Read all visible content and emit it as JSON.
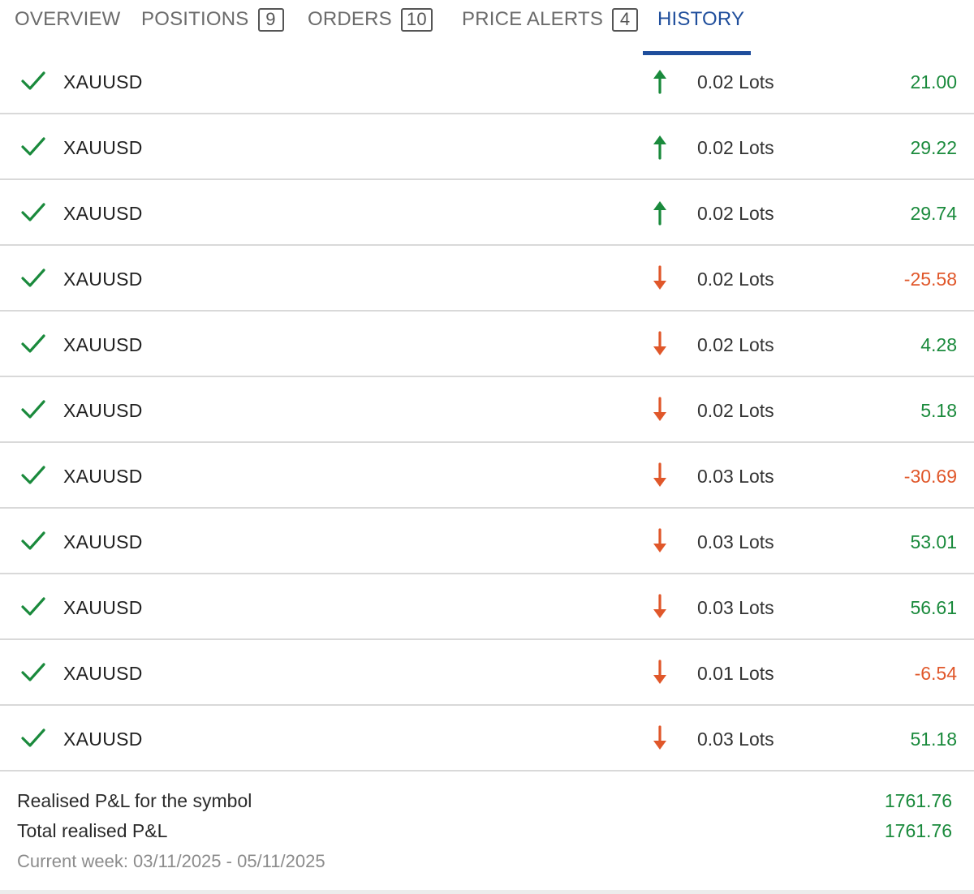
{
  "tabs": [
    {
      "label": "OVERVIEW",
      "count": null,
      "active": false
    },
    {
      "label": "POSITIONS",
      "count": "9",
      "active": false
    },
    {
      "label": "ORDERS",
      "count": "10",
      "active": false
    },
    {
      "label": "PRICE ALERTS",
      "count": "4",
      "active": false
    },
    {
      "label": "HISTORY",
      "count": null,
      "active": true
    }
  ],
  "history": [
    {
      "symbol": "XAUUSD",
      "direction": "up",
      "lots": "0.02 Lots",
      "pnl": "21.00",
      "pnl_sign": "positive"
    },
    {
      "symbol": "XAUUSD",
      "direction": "up",
      "lots": "0.02 Lots",
      "pnl": "29.22",
      "pnl_sign": "positive"
    },
    {
      "symbol": "XAUUSD",
      "direction": "up",
      "lots": "0.02 Lots",
      "pnl": "29.74",
      "pnl_sign": "positive"
    },
    {
      "symbol": "XAUUSD",
      "direction": "down",
      "lots": "0.02 Lots",
      "pnl": "-25.58",
      "pnl_sign": "negative"
    },
    {
      "symbol": "XAUUSD",
      "direction": "down",
      "lots": "0.02 Lots",
      "pnl": "4.28",
      "pnl_sign": "positive"
    },
    {
      "symbol": "XAUUSD",
      "direction": "down",
      "lots": "0.02 Lots",
      "pnl": "5.18",
      "pnl_sign": "positive"
    },
    {
      "symbol": "XAUUSD",
      "direction": "down",
      "lots": "0.03 Lots",
      "pnl": "-30.69",
      "pnl_sign": "negative"
    },
    {
      "symbol": "XAUUSD",
      "direction": "down",
      "lots": "0.03 Lots",
      "pnl": "53.01",
      "pnl_sign": "positive"
    },
    {
      "symbol": "XAUUSD",
      "direction": "down",
      "lots": "0.03 Lots",
      "pnl": "56.61",
      "pnl_sign": "positive"
    },
    {
      "symbol": "XAUUSD",
      "direction": "down",
      "lots": "0.01 Lots",
      "pnl": "-6.54",
      "pnl_sign": "negative"
    },
    {
      "symbol": "XAUUSD",
      "direction": "down",
      "lots": "0.03 Lots",
      "pnl": "51.18",
      "pnl_sign": "positive"
    }
  ],
  "summary": {
    "symbol_pnl_label": "Realised P&L for the symbol",
    "symbol_pnl_value": "1761.76",
    "total_pnl_label": "Total realised P&L",
    "total_pnl_value": "1761.76",
    "period": "Current week: 03/11/2025 - 05/11/2025"
  },
  "colors": {
    "accent": "#1f4e9c",
    "positive": "#1a8a3c",
    "negative": "#e0572a",
    "check": "#1a8a3c",
    "divider": "#d9d9d9"
  },
  "icons": {
    "status": "check-icon",
    "buy": "arrow-up-icon",
    "sell": "arrow-down-icon"
  }
}
